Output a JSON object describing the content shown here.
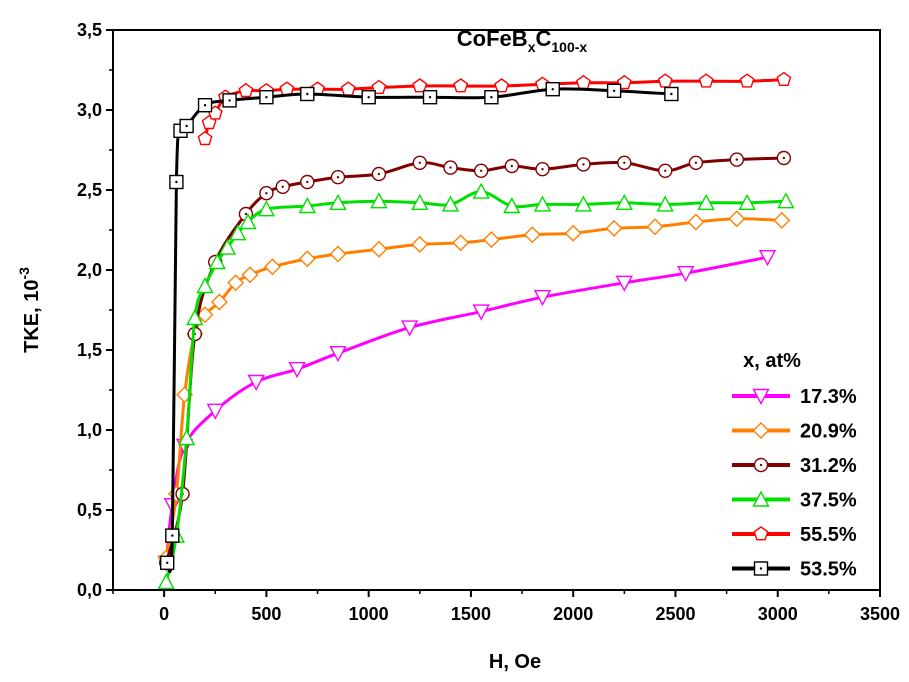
{
  "chart_data": {
    "type": "line",
    "title": {
      "base": "CoFeB",
      "sub1": "x",
      "mid": "C",
      "sub2": "100-x"
    },
    "xlabel": "H, Oe",
    "ylabel": "TKE, 10",
    "ylabel_exponent": "-3",
    "xlim": [
      -250,
      3500
    ],
    "ylim": [
      0,
      3.5
    ],
    "x_ticks": [
      0,
      500,
      1000,
      1500,
      2000,
      2500,
      3000,
      3500
    ],
    "x_tick_labels": [
      "0",
      "500",
      "1000",
      "1500",
      "2000",
      "2500",
      "3000",
      "3500"
    ],
    "y_ticks": [
      0,
      0.5,
      1.0,
      1.5,
      2.0,
      2.5,
      3.0,
      3.5
    ],
    "y_tick_labels": [
      "0,0",
      "0,5",
      "1,0",
      "1,5",
      "2,0",
      "2,5",
      "3,0",
      "3,5"
    ],
    "legend_title": "x, at%",
    "legend_position": "bottom-right",
    "grid": false,
    "series": [
      {
        "name": "17.3%",
        "color": "#ff00ff",
        "marker": "triangle-down",
        "points": [
          [
            10,
            0.17
          ],
          [
            40,
            0.53
          ],
          [
            100,
            0.9
          ],
          [
            250,
            1.12
          ],
          [
            450,
            1.3
          ],
          [
            650,
            1.38
          ],
          [
            850,
            1.48
          ],
          [
            1200,
            1.64
          ],
          [
            1550,
            1.74
          ],
          [
            1850,
            1.83
          ],
          [
            2250,
            1.92
          ],
          [
            2550,
            1.98
          ],
          [
            2950,
            2.08
          ]
        ]
      },
      {
        "name": "20.9%",
        "color": "#ff8000",
        "marker": "diamond",
        "points": [
          [
            10,
            0.2
          ],
          [
            60,
            0.6
          ],
          [
            100,
            1.22
          ],
          [
            150,
            1.6
          ],
          [
            200,
            1.72
          ],
          [
            270,
            1.8
          ],
          [
            350,
            1.92
          ],
          [
            420,
            1.97
          ],
          [
            530,
            2.02
          ],
          [
            700,
            2.07
          ],
          [
            850,
            2.1
          ],
          [
            1050,
            2.13
          ],
          [
            1250,
            2.16
          ],
          [
            1450,
            2.17
          ],
          [
            1600,
            2.19
          ],
          [
            1800,
            2.22
          ],
          [
            2000,
            2.23
          ],
          [
            2200,
            2.26
          ],
          [
            2400,
            2.27
          ],
          [
            2600,
            2.3
          ],
          [
            2800,
            2.32
          ],
          [
            3020,
            2.31
          ]
        ]
      },
      {
        "name": "31.2%",
        "color": "#800000",
        "marker": "circle",
        "points": [
          [
            10,
            0.17
          ],
          [
            90,
            0.6
          ],
          [
            150,
            1.6
          ],
          [
            250,
            2.05
          ],
          [
            400,
            2.35
          ],
          [
            500,
            2.48
          ],
          [
            580,
            2.52
          ],
          [
            700,
            2.55
          ],
          [
            850,
            2.58
          ],
          [
            1050,
            2.6
          ],
          [
            1250,
            2.67
          ],
          [
            1400,
            2.64
          ],
          [
            1550,
            2.62
          ],
          [
            1700,
            2.65
          ],
          [
            1850,
            2.63
          ],
          [
            2050,
            2.66
          ],
          [
            2250,
            2.67
          ],
          [
            2450,
            2.62
          ],
          [
            2600,
            2.67
          ],
          [
            2800,
            2.69
          ],
          [
            3030,
            2.7
          ]
        ]
      },
      {
        "name": "37.5%",
        "color": "#00e000",
        "marker": "triangle-up",
        "points": [
          [
            10,
            0.05
          ],
          [
            60,
            0.34
          ],
          [
            110,
            0.95
          ],
          [
            150,
            1.7
          ],
          [
            200,
            1.9
          ],
          [
            260,
            2.05
          ],
          [
            310,
            2.14
          ],
          [
            360,
            2.23
          ],
          [
            410,
            2.3
          ],
          [
            500,
            2.38
          ],
          [
            700,
            2.4
          ],
          [
            850,
            2.42
          ],
          [
            1050,
            2.43
          ],
          [
            1250,
            2.42
          ],
          [
            1400,
            2.41
          ],
          [
            1550,
            2.49
          ],
          [
            1700,
            2.4
          ],
          [
            1850,
            2.41
          ],
          [
            2050,
            2.41
          ],
          [
            2250,
            2.42
          ],
          [
            2450,
            2.41
          ],
          [
            2650,
            2.42
          ],
          [
            2850,
            2.42
          ],
          [
            3040,
            2.43
          ]
        ]
      },
      {
        "name": "55.5%",
        "color": "#ff0000",
        "marker": "pentagon",
        "points": [
          [
            200,
            2.82
          ],
          [
            220,
            2.92
          ],
          [
            250,
            2.98
          ],
          [
            300,
            3.08
          ],
          [
            400,
            3.12
          ],
          [
            500,
            3.12
          ],
          [
            600,
            3.13
          ],
          [
            750,
            3.13
          ],
          [
            900,
            3.13
          ],
          [
            1050,
            3.14
          ],
          [
            1250,
            3.15
          ],
          [
            1450,
            3.15
          ],
          [
            1650,
            3.15
          ],
          [
            1850,
            3.16
          ],
          [
            2050,
            3.17
          ],
          [
            2250,
            3.17
          ],
          [
            2450,
            3.18
          ],
          [
            2650,
            3.18
          ],
          [
            2850,
            3.18
          ],
          [
            3030,
            3.19
          ]
        ]
      },
      {
        "name": "53.5%",
        "color": "#000000",
        "marker": "square",
        "points": [
          [
            15,
            0.17
          ],
          [
            40,
            0.34
          ],
          [
            60,
            2.55
          ],
          [
            80,
            2.87
          ],
          [
            110,
            2.9
          ],
          [
            200,
            3.03
          ],
          [
            320,
            3.06
          ],
          [
            500,
            3.08
          ],
          [
            700,
            3.1
          ],
          [
            1000,
            3.08
          ],
          [
            1300,
            3.08
          ],
          [
            1600,
            3.08
          ],
          [
            1900,
            3.13
          ],
          [
            2200,
            3.12
          ],
          [
            2480,
            3.1
          ]
        ]
      }
    ]
  }
}
